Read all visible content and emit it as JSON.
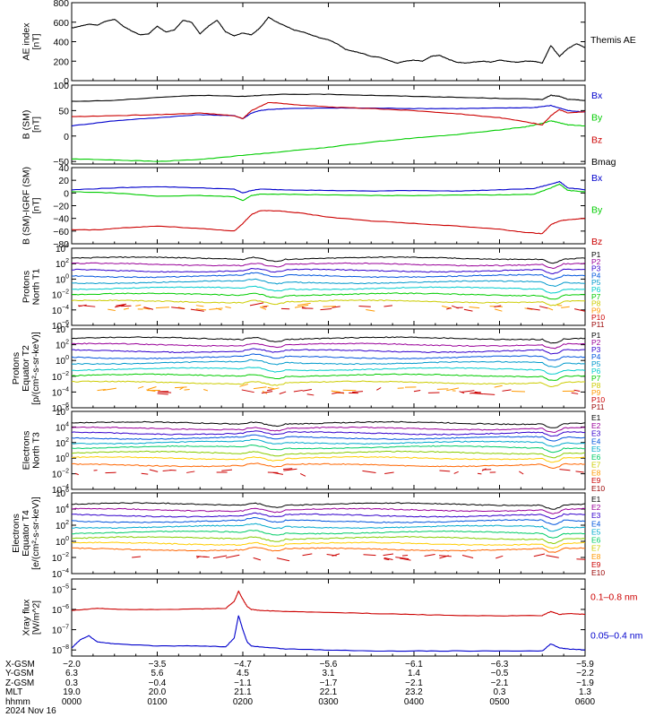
{
  "chart_data": [
    {
      "id": "ae",
      "type": "line",
      "ylabel_lines": [
        "AE index",
        "[nT]"
      ],
      "ylim": [
        0,
        800
      ],
      "yscale": "linear",
      "yticks": [
        0,
        200,
        400,
        600,
        800
      ],
      "xlim": [
        0,
        6
      ],
      "series": [
        {
          "name": "Themis AE",
          "color": "#000000",
          "x": [
            0,
            0.1,
            0.2,
            0.3,
            0.4,
            0.5,
            0.6,
            0.7,
            0.8,
            0.9,
            1.0,
            1.1,
            1.2,
            1.3,
            1.4,
            1.5,
            1.6,
            1.7,
            1.8,
            1.9,
            2.0,
            2.1,
            2.2,
            2.3,
            2.4,
            2.5,
            2.6,
            2.7,
            2.8,
            2.9,
            3.0,
            3.1,
            3.2,
            3.3,
            3.4,
            3.5,
            3.6,
            3.7,
            3.8,
            3.9,
            4.0,
            4.1,
            4.2,
            4.3,
            4.4,
            4.5,
            4.6,
            4.7,
            4.8,
            4.9,
            5.0,
            5.1,
            5.2,
            5.3,
            5.4,
            5.5,
            5.6,
            5.7,
            5.8,
            5.9,
            6.0
          ],
          "y": [
            540,
            560,
            580,
            570,
            610,
            630,
            560,
            510,
            470,
            480,
            560,
            500,
            520,
            620,
            600,
            480,
            560,
            620,
            500,
            460,
            490,
            470,
            540,
            650,
            600,
            560,
            520,
            500,
            470,
            440,
            420,
            380,
            320,
            300,
            280,
            250,
            240,
            210,
            180,
            200,
            210,
            200,
            250,
            260,
            220,
            190,
            180,
            190,
            200,
            190,
            210,
            200,
            190,
            200,
            200,
            180,
            360,
            250,
            330,
            380,
            340
          ]
        }
      ],
      "legend": [
        {
          "text": "Themis AE",
          "color": "#000000"
        }
      ]
    },
    {
      "id": "bsm",
      "type": "line",
      "ylabel_lines": [
        "B (SM)",
        "[nT]"
      ],
      "ylim": [
        -55,
        100
      ],
      "yscale": "linear",
      "yticks": [
        -50,
        0,
        50,
        100
      ],
      "xlim": [
        0,
        6
      ],
      "series": [
        {
          "name": "Bx",
          "color": "#0000cc",
          "x": [
            0,
            0.5,
            1.0,
            1.5,
            1.9,
            2.0,
            2.1,
            2.2,
            2.3,
            2.5,
            3.0,
            3.5,
            4.0,
            4.5,
            5.0,
            5.4,
            5.6,
            5.7,
            5.8,
            6.0
          ],
          "y": [
            20,
            30,
            36,
            42,
            40,
            34,
            45,
            50,
            52,
            54,
            55,
            55,
            54,
            54,
            55,
            56,
            60,
            55,
            50,
            47
          ]
        },
        {
          "name": "By",
          "color": "#00cc00",
          "x": [
            0,
            0.5,
            1.0,
            1.5,
            2.0,
            2.5,
            3.0,
            3.5,
            4.0,
            4.5,
            5.0,
            5.3,
            5.5,
            5.6,
            5.7,
            5.8,
            6.0
          ],
          "y": [
            -45,
            -47,
            -50,
            -46,
            -38,
            -30,
            -22,
            -12,
            -4,
            3,
            12,
            18,
            25,
            30,
            26,
            22,
            20
          ]
        },
        {
          "name": "Bz",
          "color": "#cc0000",
          "x": [
            0,
            0.5,
            1.0,
            1.5,
            1.9,
            2.0,
            2.1,
            2.2,
            2.3,
            2.6,
            3.0,
            3.5,
            4.0,
            4.5,
            5.0,
            5.3,
            5.5,
            5.6,
            5.7,
            5.8,
            6.0
          ],
          "y": [
            38,
            40,
            42,
            45,
            40,
            34,
            50,
            58,
            66,
            62,
            57,
            54,
            50,
            44,
            36,
            28,
            22,
            40,
            52,
            45,
            48
          ]
        },
        {
          "name": "Bmag",
          "color": "#000000",
          "x": [
            0,
            0.5,
            1.0,
            1.5,
            2.0,
            2.2,
            2.5,
            3.0,
            3.5,
            4.0,
            4.5,
            5.0,
            5.5,
            5.6,
            5.7,
            5.8,
            6.0
          ],
          "y": [
            68,
            70,
            76,
            80,
            78,
            80,
            82,
            82,
            80,
            78,
            76,
            74,
            72,
            80,
            78,
            72,
            70
          ]
        }
      ],
      "legend": [
        {
          "text": "Bx",
          "color": "#0000cc"
        },
        {
          "text": "By",
          "color": "#00cc00"
        },
        {
          "text": "Bz",
          "color": "#cc0000"
        },
        {
          "text": "Bmag",
          "color": "#000000"
        }
      ]
    },
    {
      "id": "bigrf",
      "type": "line",
      "ylabel_lines": [
        "B (SM)-IGRF (SM)",
        "[nT]"
      ],
      "ylim": [
        -80,
        40
      ],
      "yscale": "linear",
      "yticks": [
        -80,
        -60,
        -40,
        -20,
        0,
        20,
        40
      ],
      "xlim": [
        0,
        6
      ],
      "series": [
        {
          "name": "Bx",
          "color": "#0000cc",
          "x": [
            0,
            0.5,
            1.0,
            1.5,
            1.9,
            2.0,
            2.1,
            2.2,
            2.5,
            3.0,
            3.5,
            4.0,
            4.5,
            5.0,
            5.4,
            5.6,
            5.7,
            5.8,
            6.0
          ],
          "y": [
            5,
            8,
            10,
            8,
            6,
            0,
            4,
            6,
            5,
            4,
            3,
            4,
            3,
            5,
            7,
            14,
            18,
            8,
            5
          ]
        },
        {
          "name": "By",
          "color": "#00cc00",
          "x": [
            0,
            0.5,
            1.0,
            1.5,
            1.9,
            2.0,
            2.1,
            2.2,
            2.5,
            3.0,
            3.5,
            4.0,
            4.5,
            5.0,
            5.4,
            5.6,
            5.7,
            5.8,
            6.0
          ],
          "y": [
            2,
            0,
            -5,
            -4,
            -6,
            -12,
            -4,
            -2,
            -2,
            -3,
            -4,
            -4,
            -3,
            -3,
            -2,
            8,
            14,
            4,
            2
          ]
        },
        {
          "name": "Bz",
          "color": "#cc0000",
          "x": [
            0,
            0.3,
            0.6,
            1.0,
            1.5,
            1.9,
            2.0,
            2.1,
            2.2,
            2.4,
            2.7,
            3.0,
            3.5,
            4.0,
            4.5,
            5.0,
            5.3,
            5.5,
            5.6,
            5.7,
            5.8,
            6.0
          ],
          "y": [
            -58,
            -58,
            -55,
            -52,
            -56,
            -60,
            -48,
            -34,
            -28,
            -28,
            -32,
            -38,
            -44,
            -48,
            -52,
            -57,
            -62,
            -64,
            -50,
            -44,
            -42,
            -40
          ]
        }
      ],
      "legend": [
        {
          "text": "Bx",
          "color": "#0000cc"
        },
        {
          "text": "By",
          "color": "#00cc00"
        },
        {
          "text": "Bz",
          "color": "#cc0000"
        }
      ]
    },
    {
      "id": "prot_n",
      "type": "line",
      "ylabel_lines": [
        "Protons",
        "North T1"
      ],
      "ylim": [
        -6,
        4
      ],
      "yscale": "log",
      "ytick_exps": [
        -6,
        -4,
        -2,
        0,
        2,
        4
      ],
      "xlim": [
        0,
        6
      ],
      "channel_levels": [
        2.7,
        1.9,
        1.1,
        0.4,
        -0.4,
        -1.2,
        -2.0,
        -2.9
      ],
      "channel_colors": [
        "#000000",
        "#990099",
        "#3300cc",
        "#0055dd",
        "#0099cc",
        "#00cccc",
        "#00cc00",
        "#cccc00"
      ],
      "sparse": [
        {
          "level": -3.7,
          "color": "#ff9900"
        },
        {
          "level": -3.7,
          "color": "#cc0000"
        }
      ],
      "legend": [
        {
          "text": "P1",
          "color": "#000000"
        },
        {
          "text": "P2",
          "color": "#990099"
        },
        {
          "text": "P3",
          "color": "#3300cc"
        },
        {
          "text": "P4",
          "color": "#0055dd"
        },
        {
          "text": "P5",
          "color": "#0099cc"
        },
        {
          "text": "P6",
          "color": "#00cccc"
        },
        {
          "text": "P7",
          "color": "#00cc00"
        },
        {
          "text": "P8",
          "color": "#cccc00"
        },
        {
          "text": "P9",
          "color": "#ff9900"
        },
        {
          "text": "P10",
          "color": "#cc0000"
        },
        {
          "text": "P11",
          "color": "#990000"
        }
      ]
    },
    {
      "id": "prot_e",
      "type": "line",
      "ylabel_lines": [
        "Protons",
        "Equator T2",
        "[p/(cm²-s-sr-keV)]"
      ],
      "ylim": [
        -6,
        4
      ],
      "yscale": "log",
      "ytick_exps": [
        -6,
        -4,
        -2,
        0,
        2,
        4
      ],
      "xlim": [
        0,
        6
      ],
      "channel_levels": [
        2.8,
        2.0,
        1.2,
        0.4,
        -0.3,
        -1.1,
        -1.9,
        -2.8
      ],
      "channel_colors": [
        "#000000",
        "#990099",
        "#3300cc",
        "#0055dd",
        "#0099cc",
        "#00cccc",
        "#00cc00",
        "#cccc00"
      ],
      "sparse": [
        {
          "level": -3.6,
          "color": "#ff9900"
        },
        {
          "level": -4.0,
          "color": "#cc0000"
        }
      ],
      "legend": [
        {
          "text": "P1",
          "color": "#000000"
        },
        {
          "text": "P2",
          "color": "#990099"
        },
        {
          "text": "P3",
          "color": "#3300cc"
        },
        {
          "text": "P4",
          "color": "#0055dd"
        },
        {
          "text": "P5",
          "color": "#0099cc"
        },
        {
          "text": "P6",
          "color": "#00cccc"
        },
        {
          "text": "P7",
          "color": "#00cc00"
        },
        {
          "text": "P8",
          "color": "#cccc00"
        },
        {
          "text": "P9",
          "color": "#ff9900"
        },
        {
          "text": "P10",
          "color": "#cc0000"
        },
        {
          "text": "P11",
          "color": "#990000"
        }
      ]
    },
    {
      "id": "elec_n",
      "type": "line",
      "ylabel_lines": [
        "Electrons",
        "North T3"
      ],
      "ylim": [
        -4,
        6
      ],
      "yscale": "log",
      "ytick_exps": [
        -4,
        -2,
        0,
        2,
        4,
        6
      ],
      "xlim": [
        0,
        6
      ],
      "channel_levels": [
        4.5,
        3.8,
        3.2,
        2.6,
        2.0,
        1.4,
        0.7,
        0.0,
        -0.9
      ],
      "channel_colors": [
        "#000000",
        "#990099",
        "#3300cc",
        "#0055dd",
        "#00aacc",
        "#00cc66",
        "#88cc00",
        "#ffcc00",
        "#ff6600"
      ],
      "sparse": [
        {
          "level": -1.7,
          "color": "#cc0000"
        }
      ],
      "legend": [
        {
          "text": "E1",
          "color": "#000000"
        },
        {
          "text": "E2",
          "color": "#990099"
        },
        {
          "text": "E3",
          "color": "#3300cc"
        },
        {
          "text": "E4",
          "color": "#0055dd"
        },
        {
          "text": "E5",
          "color": "#00aacc"
        },
        {
          "text": "E6",
          "color": "#00cc66"
        },
        {
          "text": "E7",
          "color": "#cccc00"
        },
        {
          "text": "E8",
          "color": "#ff9900"
        },
        {
          "text": "E9",
          "color": "#cc0000"
        },
        {
          "text": "E10",
          "color": "#990000"
        }
      ]
    },
    {
      "id": "elec_e",
      "type": "line",
      "ylabel_lines": [
        "Electrons",
        "Equator T4",
        "[e/(cm²-s-sr-keV)]"
      ],
      "ylim": [
        -4,
        6
      ],
      "yscale": "log",
      "ytick_exps": [
        -4,
        -2,
        0,
        2,
        4,
        6
      ],
      "xlim": [
        0,
        6
      ],
      "channel_levels": [
        4.6,
        3.9,
        3.2,
        2.5,
        1.8,
        1.1,
        0.4,
        -0.3,
        -1.0
      ],
      "channel_colors": [
        "#000000",
        "#990099",
        "#3300cc",
        "#0055dd",
        "#00aacc",
        "#00cc66",
        "#88cc00",
        "#ffcc00",
        "#ff6600"
      ],
      "sparse": [
        {
          "level": -1.9,
          "color": "#cc0000"
        }
      ],
      "legend": [
        {
          "text": "E1",
          "color": "#000000"
        },
        {
          "text": "E2",
          "color": "#990099"
        },
        {
          "text": "E3",
          "color": "#3300cc"
        },
        {
          "text": "E4",
          "color": "#0055dd"
        },
        {
          "text": "E5",
          "color": "#00aacc"
        },
        {
          "text": "E6",
          "color": "#00cc66"
        },
        {
          "text": "E7",
          "color": "#cccc00"
        },
        {
          "text": "E8",
          "color": "#ff9900"
        },
        {
          "text": "E9",
          "color": "#cc0000"
        },
        {
          "text": "E10",
          "color": "#990000"
        }
      ]
    },
    {
      "id": "xray",
      "type": "line",
      "ylabel_lines": [
        "Xray flux",
        "[W/m^2]"
      ],
      "ylim": [
        -8.3,
        -4.5
      ],
      "yscale": "log",
      "ytick_exps": [
        -8,
        -7,
        -6,
        -5
      ],
      "xlim": [
        0,
        6
      ],
      "series": [
        {
          "name": "0.1-0.8 nm",
          "color": "#cc0000",
          "x": [
            0,
            0.3,
            0.6,
            1.0,
            1.5,
            1.8,
            1.9,
            1.95,
            2.0,
            2.05,
            2.1,
            2.2,
            2.5,
            3.0,
            3.5,
            4.0,
            4.5,
            5.0,
            5.5,
            5.6,
            5.7,
            5.8,
            6.0
          ],
          "y": [
            -6.05,
            -5.95,
            -6.0,
            -6.0,
            -5.98,
            -5.95,
            -5.6,
            -5.1,
            -5.5,
            -5.85,
            -6.0,
            -6.05,
            -6.1,
            -6.15,
            -6.2,
            -6.25,
            -6.3,
            -6.32,
            -6.3,
            -6.1,
            -6.25,
            -6.2,
            -6.25
          ]
        },
        {
          "name": "0.05-0.4 nm",
          "color": "#0000cc",
          "x": [
            0,
            0.1,
            0.2,
            0.3,
            0.5,
            1.0,
            1.5,
            1.8,
            1.9,
            1.95,
            2.0,
            2.05,
            2.1,
            2.2,
            2.5,
            3.0,
            3.5,
            4.0,
            4.5,
            5.0,
            5.5,
            5.6,
            5.7,
            5.8,
            6.0
          ],
          "y": [
            -7.9,
            -7.5,
            -7.3,
            -7.6,
            -7.7,
            -7.8,
            -7.8,
            -7.85,
            -7.4,
            -6.3,
            -7.0,
            -7.6,
            -7.8,
            -7.85,
            -7.95,
            -8.0,
            -8.05,
            -8.05,
            -8.05,
            -8.05,
            -8.05,
            -7.7,
            -7.9,
            -7.95,
            -8.0
          ]
        }
      ],
      "legend": [
        {
          "text": "0.1–0.8 nm",
          "color": "#cc0000"
        },
        {
          "text": "0.05–0.4 nm",
          "color": "#0000cc"
        }
      ]
    }
  ],
  "footer": {
    "rows": [
      {
        "label": "X-GSM",
        "values": [
          "−2.0",
          "−3.5",
          "−4.7",
          "−5.6",
          "−6.1",
          "−6.3",
          "−5.9"
        ]
      },
      {
        "label": "Y-GSM",
        "values": [
          "6.3",
          "5.6",
          "4.5",
          "3.1",
          "1.4",
          "−0.5",
          "−2.2"
        ]
      },
      {
        "label": "Z-GSM",
        "values": [
          "0.3",
          "−0.4",
          "−1.1",
          "−1.7",
          "−2.1",
          "−2.1",
          "−1.9"
        ]
      },
      {
        "label": "MLT",
        "values": [
          "19.0",
          "20.0",
          "21.1",
          "22.1",
          "23.2",
          "0.3",
          "1.3"
        ]
      },
      {
        "label": "hhmm",
        "values": [
          "0000",
          "0100",
          "0200",
          "0300",
          "0400",
          "0500",
          "0600"
        ]
      }
    ],
    "date": "2024 Nov 16"
  }
}
